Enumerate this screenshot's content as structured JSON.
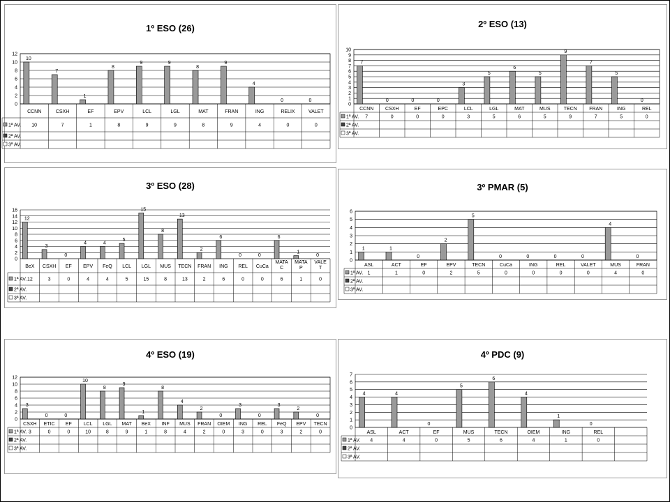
{
  "series_labels": [
    "1ª AV.",
    "2ª AV.",
    "3ª AV."
  ],
  "colors": {
    "bar": "#9a9a9a",
    "bar_edge": "#000000",
    "grid": "#000000"
  },
  "chart_data": [
    {
      "type": "bar",
      "title": "1º ESO (26)",
      "categories": [
        "CCNN",
        "CSXH",
        "EF",
        "EPV",
        "LCL",
        "LGL",
        "MAT",
        "FRAN",
        "ING",
        "RELIX",
        "VALET"
      ],
      "categories_display": [
        [
          "CCNN"
        ],
        [
          "CSXH"
        ],
        [
          "EF"
        ],
        [
          "EPV"
        ],
        [
          "LCL"
        ],
        [
          "LGL"
        ],
        [
          "MAT"
        ],
        [
          "FRAN"
        ],
        [
          "ING"
        ],
        [
          "RELIX"
        ],
        [
          "VALET"
        ]
      ],
      "series": [
        {
          "name": "1ª AV.",
          "values": [
            10,
            7,
            1,
            8,
            9,
            9,
            8,
            9,
            4,
            0,
            0
          ]
        }
      ],
      "ylim": [
        0,
        12
      ],
      "yticks": [
        0,
        2,
        4,
        6,
        8,
        10,
        12
      ],
      "grid": true
    },
    {
      "type": "bar",
      "title": "2º ESO (13)",
      "categories": [
        "CCNN",
        "CSXH",
        "EF",
        "EPC",
        "LCL",
        "LGL",
        "MAT",
        "MUS",
        "TECN",
        "FRAN",
        "ING",
        "REL"
      ],
      "categories_display": [
        [
          "CCNN"
        ],
        [
          "CSXH"
        ],
        [
          "EF"
        ],
        [
          "EPC"
        ],
        [
          "LCL"
        ],
        [
          "LGL"
        ],
        [
          "MAT"
        ],
        [
          "MUS"
        ],
        [
          "TECN"
        ],
        [
          "FRAN"
        ],
        [
          "ING"
        ],
        [
          "REL"
        ]
      ],
      "series": [
        {
          "name": "1ª AV.",
          "values": [
            7,
            0,
            0,
            0,
            3,
            5,
            6,
            5,
            9,
            7,
            5,
            0
          ]
        }
      ],
      "ylim": [
        0,
        10
      ],
      "yticks": [
        0,
        1,
        2,
        3,
        4,
        5,
        6,
        7,
        8,
        9,
        10
      ],
      "grid": true
    },
    {
      "type": "bar",
      "title": "3º ESO (28)",
      "categories": [
        "BeX",
        "CSXH",
        "EF",
        "EPV",
        "FeQ",
        "LCL",
        "LGL",
        "MUS",
        "TECN",
        "FRAN",
        "ING",
        "REL",
        "CuCa",
        "MATAC",
        "MATAP",
        "VALET"
      ],
      "categories_display": [
        [
          "BeX"
        ],
        [
          "CSXH"
        ],
        [
          "EF"
        ],
        [
          "EPV"
        ],
        [
          "FeQ"
        ],
        [
          "LCL"
        ],
        [
          "LGL"
        ],
        [
          "MUS"
        ],
        [
          "TECN"
        ],
        [
          "FRAN"
        ],
        [
          "ING"
        ],
        [
          "REL"
        ],
        [
          "CuCa"
        ],
        [
          "MATA",
          "C"
        ],
        [
          "MATA",
          "P"
        ],
        [
          "VALE",
          "T"
        ]
      ],
      "series": [
        {
          "name": "1ª AV.",
          "values": [
            12,
            3,
            0,
            4,
            4,
            5,
            15,
            8,
            13,
            2,
            6,
            0,
            0,
            6,
            1,
            0
          ]
        }
      ],
      "ylim": [
        0,
        16
      ],
      "yticks": [
        0,
        2,
        4,
        6,
        8,
        10,
        12,
        14,
        16
      ],
      "grid": true
    },
    {
      "type": "bar",
      "title": "3º PMAR (5)",
      "categories": [
        "ASL",
        "ACT",
        "EF",
        "EPV",
        "TECN",
        "CuCa",
        "ING",
        "REL",
        "VALET",
        "MUS",
        "FRAN"
      ],
      "categories_display": [
        [
          "ASL"
        ],
        [
          "ACT"
        ],
        [
          "EF"
        ],
        [
          "EPV"
        ],
        [
          "TECN"
        ],
        [
          "CuCa"
        ],
        [
          "ING"
        ],
        [
          "REL"
        ],
        [
          "VALET"
        ],
        [
          "MUS"
        ],
        [
          "FRAN"
        ]
      ],
      "series": [
        {
          "name": "1ª AV.",
          "values": [
            1,
            1,
            0,
            2,
            5,
            0,
            0,
            0,
            0,
            4,
            0
          ]
        }
      ],
      "ylim": [
        0,
        6
      ],
      "yticks": [
        0,
        1,
        2,
        3,
        4,
        5,
        6
      ],
      "grid": true
    },
    {
      "type": "bar",
      "title": "4º ESO (19)",
      "categories": [
        "CSXH",
        "ETIC",
        "EF",
        "LCL",
        "LGL",
        "MAT",
        "BeX",
        "INF",
        "MUS",
        "FRAN",
        "OIEM",
        "ING",
        "REL",
        "FeQ",
        "EPV",
        "TECN"
      ],
      "categories_display": [
        [
          "CSXH"
        ],
        [
          "ETIC"
        ],
        [
          "EF"
        ],
        [
          "LCL"
        ],
        [
          "LGL"
        ],
        [
          "MAT"
        ],
        [
          "BeX"
        ],
        [
          "INF"
        ],
        [
          "MUS"
        ],
        [
          "FRAN"
        ],
        [
          "OIEM"
        ],
        [
          "ING"
        ],
        [
          "REL"
        ],
        [
          "FeQ"
        ],
        [
          "EPV"
        ],
        [
          "TECN"
        ]
      ],
      "series": [
        {
          "name": "1ª AV.",
          "values": [
            3,
            0,
            0,
            10,
            8,
            9,
            1,
            8,
            4,
            2,
            0,
            3,
            0,
            3,
            2,
            0
          ]
        }
      ],
      "ylim": [
        0,
        12
      ],
      "yticks": [
        0,
        2,
        4,
        6,
        8,
        10,
        12
      ],
      "grid": true
    },
    {
      "type": "bar",
      "title": "4º PDC (9)",
      "categories": [
        "ASL",
        "ACT",
        "EF",
        "MUS",
        "TECN",
        "OIEM",
        "ING",
        "REL",
        ""
      ],
      "categories_display": [
        [
          "ASL"
        ],
        [
          "ACT"
        ],
        [
          "EF"
        ],
        [
          "MUS"
        ],
        [
          "TECN"
        ],
        [
          "OIEM"
        ],
        [
          "ING"
        ],
        [
          "REL"
        ],
        [
          ""
        ]
      ],
      "series": [
        {
          "name": "1ª AV.",
          "values": [
            4,
            4,
            0,
            5,
            6,
            4,
            1,
            0,
            null
          ]
        }
      ],
      "ylim": [
        0,
        7
      ],
      "yticks": [
        0,
        1,
        2,
        3,
        4,
        5,
        6,
        7
      ],
      "grid": true
    }
  ]
}
